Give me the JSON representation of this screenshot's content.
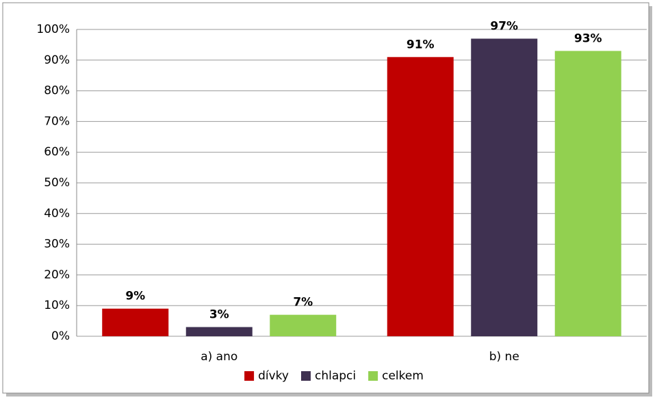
{
  "chart_data": {
    "type": "bar",
    "categories": [
      "a) ano",
      "b) ne"
    ],
    "series": [
      {
        "name": "dívky",
        "color": "#c00000",
        "values": [
          9,
          91
        ],
        "value_labels": [
          "9%",
          "91%"
        ]
      },
      {
        "name": "chlapci",
        "color": "#3f3151",
        "values": [
          3,
          97
        ],
        "value_labels": [
          "3%",
          "97%"
        ]
      },
      {
        "name": "celkem",
        "color": "#92d050",
        "values": [
          7,
          93
        ],
        "value_labels": [
          "7%",
          "93%"
        ]
      }
    ],
    "ylim": [
      0,
      100
    ],
    "yticks": [
      {
        "value": 0,
        "label": "0%"
      },
      {
        "value": 10,
        "label": "10%"
      },
      {
        "value": 20,
        "label": "20%"
      },
      {
        "value": 30,
        "label": "30%"
      },
      {
        "value": 40,
        "label": "40%"
      },
      {
        "value": 50,
        "label": "50%"
      },
      {
        "value": 60,
        "label": "60%"
      },
      {
        "value": 70,
        "label": "70%"
      },
      {
        "value": 80,
        "label": "80%"
      },
      {
        "value": 90,
        "label": "90%"
      },
      {
        "value": 100,
        "label": "100%"
      }
    ],
    "grid": true,
    "legend": "bottom"
  }
}
